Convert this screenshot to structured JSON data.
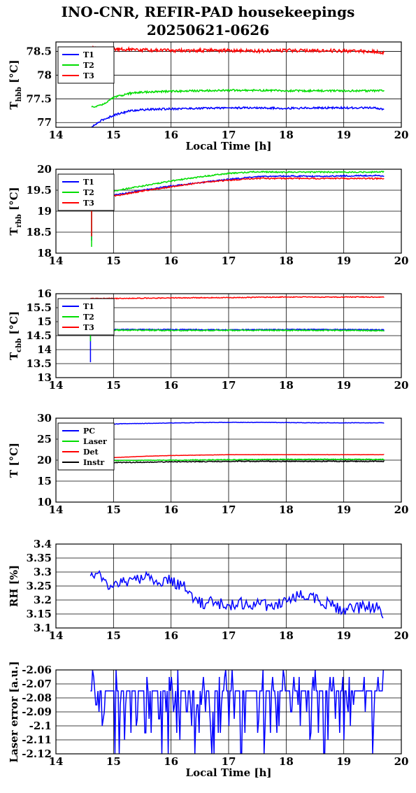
{
  "header": {
    "title_line1": "INO-CNR, REFIR-PAD housekeepings",
    "title_line2": "20250621-0626"
  },
  "chart_data": [
    {
      "type": "line",
      "ylabel": "T_hbb [°C]",
      "ylabel_main": "T",
      "ylabel_sub": "hbb",
      "ylabel_unit": "[°C]",
      "xlabel": "Local Time [h]",
      "xlim": [
        14,
        20
      ],
      "ylim": [
        76.9,
        78.7
      ],
      "xticks": [
        "14",
        "15",
        "16",
        "17",
        "18",
        "19",
        "20"
      ],
      "yticks": [
        {
          "v": 77,
          "label": "77"
        },
        {
          "v": 77.5,
          "label": "77.5"
        },
        {
          "v": 78,
          "label": "78"
        },
        {
          "v": 78.5,
          "label": "78.5"
        }
      ],
      "grid": true,
      "legend": "top-left",
      "series": [
        {
          "name": "T1",
          "color": "#0000ff",
          "x": [
            14.62,
            14.7,
            14.8,
            14.9,
            15.0,
            15.1,
            15.2,
            15.3,
            15.5,
            15.75,
            16.0,
            16.5,
            17.0,
            17.5,
            18.0,
            18.5,
            19.0,
            19.5,
            19.7
          ],
          "y": [
            76.9,
            76.97,
            77.05,
            77.1,
            77.15,
            77.19,
            77.22,
            77.25,
            77.27,
            77.28,
            77.29,
            77.3,
            77.31,
            77.31,
            77.3,
            77.31,
            77.31,
            77.31,
            77.28
          ],
          "noise": 0.02
        },
        {
          "name": "T2",
          "color": "#00dd00",
          "x": [
            14.62,
            14.8,
            14.9,
            15.0,
            15.1,
            15.2,
            15.3,
            15.5,
            15.75,
            16.0,
            16.5,
            17.0,
            17.5,
            18.0,
            18.5,
            19.0,
            19.5,
            19.7
          ],
          "y": [
            77.32,
            77.38,
            77.45,
            77.52,
            77.56,
            77.59,
            77.62,
            77.64,
            77.65,
            77.66,
            77.67,
            77.68,
            77.68,
            77.67,
            77.67,
            77.67,
            77.67,
            77.68
          ],
          "noise": 0.02
        },
        {
          "name": "T3",
          "color": "#ff0000",
          "x": [
            14.62,
            15.0,
            15.5,
            16.0,
            16.5,
            17.0,
            17.5,
            18.0,
            18.5,
            19.0,
            19.5,
            19.7
          ],
          "y": [
            78.57,
            78.55,
            78.53,
            78.52,
            78.52,
            78.52,
            78.51,
            78.52,
            78.52,
            78.51,
            78.5,
            78.48
          ],
          "noise": 0.035
        }
      ]
    },
    {
      "type": "line",
      "ylabel": "T_rbb [°C]",
      "ylabel_main": "T",
      "ylabel_sub": "rbb",
      "ylabel_unit": "[°C]",
      "xlabel": "",
      "xlim": [
        14,
        20
      ],
      "ylim": [
        18,
        20
      ],
      "xticks": [
        "14",
        "15",
        "16",
        "17",
        "18",
        "19",
        "20"
      ],
      "yticks": [
        {
          "v": 18,
          "label": "18"
        },
        {
          "v": 18.5,
          "label": "18.5"
        },
        {
          "v": 19,
          "label": "19"
        },
        {
          "v": 19.5,
          "label": "19.5"
        },
        {
          "v": 20,
          "label": "20"
        }
      ],
      "grid": true,
      "legend": "top-left",
      "series": [
        {
          "name": "T1",
          "color": "#0000ff",
          "x": [
            14.62,
            14.62,
            14.65,
            15.0,
            15.5,
            16.0,
            16.5,
            17.0,
            17.5,
            18.0,
            18.5,
            19.0,
            19.5,
            19.7
          ],
          "y": [
            18.3,
            19.3,
            19.32,
            19.38,
            19.5,
            19.6,
            19.68,
            19.76,
            19.82,
            19.84,
            19.83,
            19.84,
            19.85,
            19.84
          ],
          "noise": 0.015
        },
        {
          "name": "T2",
          "color": "#00dd00",
          "x": [
            14.62,
            14.62,
            14.65,
            15.0,
            15.5,
            16.0,
            16.5,
            17.0,
            17.5,
            18.0,
            18.5,
            19.0,
            19.5,
            19.7
          ],
          "y": [
            18.15,
            19.4,
            19.42,
            19.48,
            19.6,
            19.72,
            19.82,
            19.9,
            19.94,
            19.93,
            19.93,
            19.93,
            19.93,
            19.94
          ],
          "noise": 0.015
        },
        {
          "name": "T3",
          "color": "#ff0000",
          "x": [
            14.62,
            14.62,
            14.65,
            15.0,
            15.5,
            16.0,
            16.5,
            17.0,
            17.5,
            18.0,
            18.5,
            19.0,
            19.5,
            19.7
          ],
          "y": [
            18.4,
            19.3,
            19.32,
            19.36,
            19.48,
            19.58,
            19.68,
            19.74,
            19.78,
            19.78,
            19.78,
            19.78,
            19.78,
            19.78
          ],
          "noise": 0.015
        }
      ]
    },
    {
      "type": "line",
      "ylabel": "T_cbb [°C]",
      "ylabel_main": "T",
      "ylabel_sub": "cbb",
      "ylabel_unit": "[°C]",
      "xlabel": "",
      "xlim": [
        14,
        20
      ],
      "ylim": [
        13,
        16
      ],
      "xticks": [
        "14",
        "15",
        "16",
        "17",
        "18",
        "19",
        "20"
      ],
      "yticks": [
        {
          "v": 13,
          "label": "13"
        },
        {
          "v": 13.5,
          "label": "13.5"
        },
        {
          "v": 14,
          "label": "14"
        },
        {
          "v": 14.5,
          "label": "14.5"
        },
        {
          "v": 15,
          "label": "15"
        },
        {
          "v": 15.5,
          "label": "15.5"
        },
        {
          "v": 16,
          "label": "16"
        }
      ],
      "grid": true,
      "legend": "top-left",
      "series": [
        {
          "name": "T1",
          "color": "#0000ff",
          "x": [
            14.6,
            14.6,
            14.62,
            15.0,
            16.0,
            17.0,
            18.0,
            19.0,
            19.7
          ],
          "y": [
            13.55,
            14.65,
            14.72,
            14.72,
            14.72,
            14.71,
            14.72,
            14.72,
            14.71
          ],
          "noise": 0.015
        },
        {
          "name": "T2",
          "color": "#00dd00",
          "x": [
            14.6,
            14.6,
            14.62,
            15.0,
            16.0,
            17.0,
            18.0,
            19.0,
            19.7
          ],
          "y": [
            14.3,
            14.68,
            14.7,
            14.7,
            14.69,
            14.69,
            14.69,
            14.69,
            14.68
          ],
          "noise": 0.02
        },
        {
          "name": "T3",
          "color": "#ff0000",
          "x": [
            14.6,
            15.0,
            16.0,
            17.0,
            18.0,
            19.0,
            19.7
          ],
          "y": [
            15.83,
            15.83,
            15.85,
            15.86,
            15.88,
            15.88,
            15.88
          ],
          "noise": 0.015
        }
      ]
    },
    {
      "type": "line",
      "ylabel": "T [°C]",
      "xlabel": "",
      "xlim": [
        14,
        20
      ],
      "ylim": [
        10,
        30
      ],
      "xticks": [
        "14",
        "15",
        "16",
        "17",
        "18",
        "19",
        "20"
      ],
      "yticks": [
        {
          "v": 10,
          "label": "10"
        },
        {
          "v": 15,
          "label": "15"
        },
        {
          "v": 20,
          "label": "20"
        },
        {
          "v": 25,
          "label": "25"
        },
        {
          "v": 30,
          "label": "30"
        }
      ],
      "grid": true,
      "legend": "top-left",
      "series": [
        {
          "name": "PC",
          "color": "#0000ff",
          "x": [
            14.62,
            15.0,
            15.2,
            15.5,
            16.0,
            16.5,
            17.0,
            17.5,
            18.0,
            18.5,
            19.0,
            19.7
          ],
          "y": [
            28.4,
            28.6,
            28.7,
            28.75,
            28.85,
            28.95,
            29.0,
            29.0,
            28.95,
            28.9,
            28.9,
            28.9
          ],
          "noise": 0.05
        },
        {
          "name": "Laser",
          "color": "#00dd00",
          "x": [
            14.62,
            15.0,
            16.0,
            17.0,
            18.0,
            19.0,
            19.7
          ],
          "y": [
            19.8,
            19.9,
            20.0,
            20.1,
            20.2,
            20.2,
            20.2
          ],
          "noise": 0.08
        },
        {
          "name": "Det",
          "color": "#ff0000",
          "x": [
            14.62,
            15.0,
            15.5,
            16.0,
            16.5,
            17.0,
            18.0,
            19.0,
            19.7
          ],
          "y": [
            20.4,
            20.6,
            20.9,
            21.1,
            21.2,
            21.3,
            21.3,
            21.3,
            21.3
          ],
          "noise": 0.03
        },
        {
          "name": "Instr",
          "color": "#000000",
          "x": [
            14.62,
            15.0,
            16.0,
            17.0,
            18.0,
            19.0,
            19.7
          ],
          "y": [
            19.3,
            19.4,
            19.6,
            19.7,
            19.7,
            19.7,
            19.7
          ],
          "noise": 0.1
        }
      ]
    },
    {
      "type": "line",
      "ylabel": "RH [%]",
      "xlabel": "",
      "xlim": [
        14,
        20
      ],
      "ylim": [
        3.1,
        3.4
      ],
      "xticks": [
        "14",
        "15",
        "16",
        "17",
        "18",
        "19",
        "20"
      ],
      "yticks": [
        {
          "v": 3.1,
          "label": "3.1"
        },
        {
          "v": 3.15,
          "label": "3.15"
        },
        {
          "v": 3.2,
          "label": "3.2"
        },
        {
          "v": 3.25,
          "label": "3.25"
        },
        {
          "v": 3.3,
          "label": "3.3"
        },
        {
          "v": 3.35,
          "label": "3.35"
        },
        {
          "v": 3.4,
          "label": "3.4"
        }
      ],
      "grid": true,
      "legend": "none",
      "series": [
        {
          "color": "#0000ff",
          "x": [
            14.6,
            14.7,
            14.8,
            14.9,
            15.0,
            15.2,
            15.4,
            15.6,
            15.8,
            16.0,
            16.2,
            16.35,
            16.5,
            16.8,
            17.0,
            17.3,
            17.6,
            17.9,
            18.2,
            18.4,
            18.6,
            18.8,
            19.0,
            19.2,
            19.4,
            19.6,
            19.7
          ],
          "y": [
            3.3,
            3.3,
            3.28,
            3.25,
            3.25,
            3.27,
            3.27,
            3.28,
            3.27,
            3.27,
            3.25,
            3.22,
            3.19,
            3.19,
            3.18,
            3.19,
            3.18,
            3.19,
            3.21,
            3.22,
            3.2,
            3.18,
            3.16,
            3.17,
            3.18,
            3.17,
            3.15
          ],
          "noise": 0.022,
          "noisePerPoint": true
        }
      ]
    },
    {
      "type": "line",
      "ylabel": "Laser error [a.u.]",
      "xlabel": "Local Time [h]",
      "xlim": [
        14,
        20
      ],
      "ylim": [
        -2.12,
        -2.06
      ],
      "xticks": [
        "14",
        "15",
        "16",
        "17",
        "18",
        "19",
        "20"
      ],
      "yticks": [
        {
          "v": -2.12,
          "label": "-2.12"
        },
        {
          "v": -2.11,
          "label": "-2.11"
        },
        {
          "v": -2.1,
          "label": "-2.1"
        },
        {
          "v": -2.09,
          "label": "-2.09"
        },
        {
          "v": -2.08,
          "label": "-2.08"
        },
        {
          "v": -2.07,
          "label": "-2.07"
        },
        {
          "v": -2.06,
          "label": "-2.06"
        }
      ],
      "grid": true,
      "legend": "none",
      "series": [
        {
          "color": "#0000ff",
          "x": [
            14.6,
            19.7
          ],
          "y": [
            -2.075,
            -2.075
          ],
          "levels": [
            -2.06,
            -2.065,
            -2.075,
            -2.085,
            -2.09,
            -2.095,
            -2.1,
            -2.105,
            -2.11,
            -2.12
          ],
          "quantized": true
        }
      ]
    }
  ]
}
